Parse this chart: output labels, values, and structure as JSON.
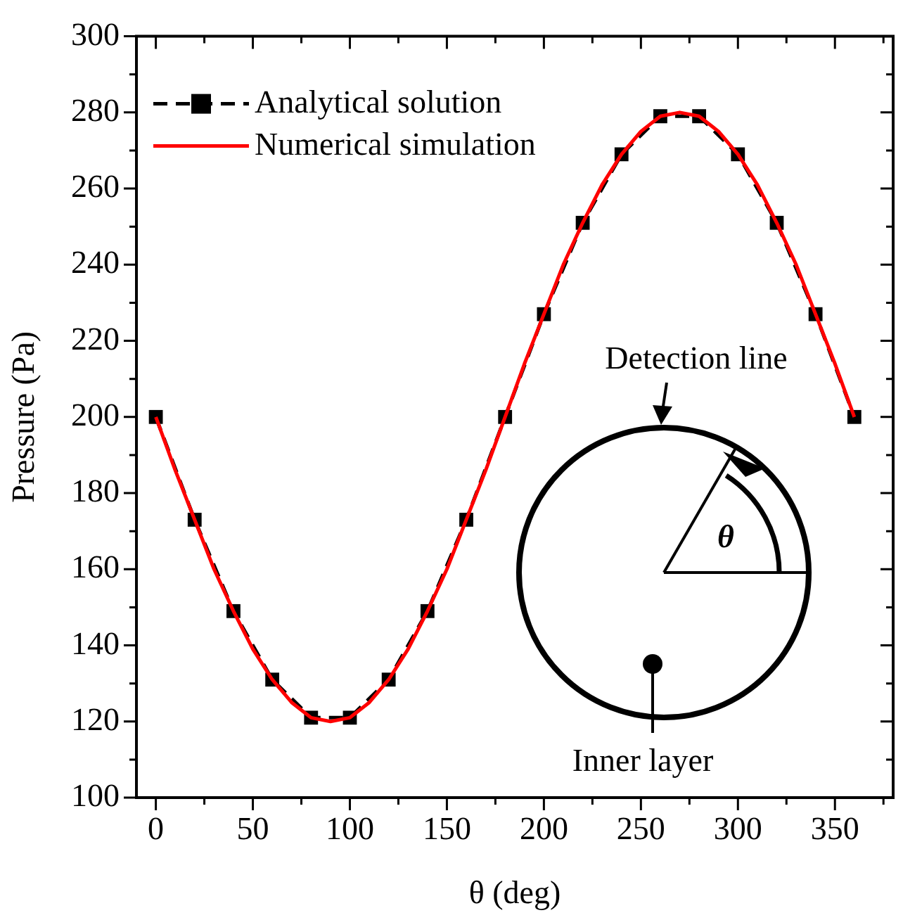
{
  "chart_data": {
    "type": "line",
    "xlabel": "θ (deg)",
    "ylabel": "Pressure (Pa)",
    "xlim": [
      -10,
      380
    ],
    "xticks": [
      0,
      {
        "value": 25,
        "label": null
      },
      50,
      {
        "value": 75,
        "label": null
      },
      100,
      {
        "value": 125,
        "label": null
      },
      150,
      {
        "value": 175,
        "label": null
      },
      200,
      {
        "value": 225,
        "label": null
      },
      250,
      {
        "value": 275,
        "label": null
      },
      300,
      {
        "value": 325,
        "label": null
      },
      350,
      {
        "value": 375,
        "label": null
      }
    ],
    "ylim": [
      100,
      300
    ],
    "yticks": [
      100,
      {
        "value": 110,
        "label": null
      },
      120,
      {
        "value": 130,
        "label": null
      },
      140,
      {
        "value": 150,
        "label": null
      },
      160,
      {
        "value": 170,
        "label": null
      },
      180,
      {
        "value": 190,
        "label": null
      },
      200,
      {
        "value": 210,
        "label": null
      },
      220,
      {
        "value": 230,
        "label": null
      },
      240,
      {
        "value": 250,
        "label": null
      },
      260,
      {
        "value": 270,
        "label": null
      },
      280,
      {
        "value": 290,
        "label": null
      },
      300
    ],
    "grid": false,
    "legend": "top left",
    "annotations": [
      "Detection line",
      "θ",
      "Inner layer"
    ],
    "series": [
      {
        "name": "Analytical solution",
        "color": "#000000",
        "marker": "square",
        "line_style": "dashed",
        "x": [
          0,
          20,
          40,
          60,
          80,
          100,
          120,
          140,
          160,
          180,
          200,
          220,
          240,
          260,
          280,
          300,
          320,
          340,
          360
        ],
        "values": [
          200,
          173,
          149,
          131,
          121,
          121,
          131,
          149,
          173,
          200,
          227,
          251,
          269,
          279,
          279,
          269,
          251,
          227,
          200
        ]
      },
      {
        "name": "Numerical simulation",
        "color": "#ff0000",
        "marker": "none",
        "line_style": "solid",
        "x": [
          0,
          10,
          20,
          30,
          40,
          50,
          60,
          70,
          80,
          90,
          100,
          110,
          120,
          130,
          140,
          150,
          160,
          170,
          180,
          190,
          200,
          210,
          220,
          230,
          240,
          250,
          260,
          270,
          280,
          290,
          300,
          310,
          320,
          330,
          340,
          350,
          360
        ],
        "values": [
          200,
          186,
          173,
          160,
          149,
          139,
          131,
          125,
          121,
          120,
          121,
          125,
          131,
          139,
          149,
          160,
          173,
          186,
          200,
          214,
          227,
          240,
          251,
          261,
          269,
          275,
          279,
          280,
          279,
          275,
          269,
          261,
          251,
          240,
          227,
          214,
          200
        ]
      }
    ]
  }
}
